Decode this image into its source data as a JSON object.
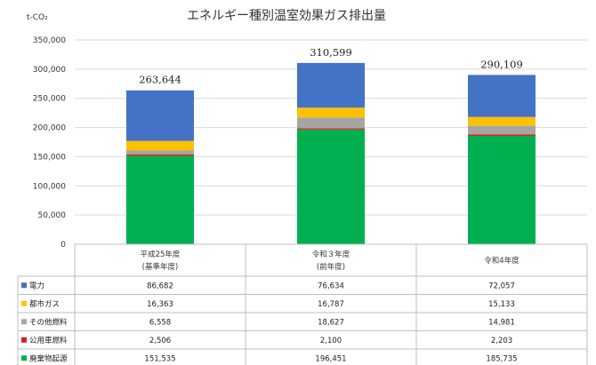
{
  "chart_data": {
    "type": "bar",
    "stacked": true,
    "title": "エネルギー種別温室効果ガス排出量",
    "ylabel": "t-CO₂",
    "ylim": [
      0,
      350000
    ],
    "yticks": [
      "0",
      "50,000",
      "100,000",
      "150,000",
      "200,000",
      "250,000",
      "300,000",
      "350,000"
    ],
    "grid": true,
    "legend": "table-bottom",
    "categories": [
      {
        "line1": "平成25年度",
        "line2": "(基準年度)"
      },
      {
        "line1": "令和３年度",
        "line2": "(前年度)"
      },
      {
        "line1": "令和4年度",
        "line2": ""
      }
    ],
    "totals": [
      "263,644",
      "310,599",
      "290,109"
    ],
    "series": [
      {
        "name": "電力",
        "color": "#4472c4",
        "values": [
          86682,
          76634,
          72057
        ],
        "labels": [
          "86,682",
          "76,634",
          "72,057"
        ]
      },
      {
        "name": "都市ガス",
        "color": "#ffc000",
        "values": [
          16363,
          16787,
          15133
        ],
        "labels": [
          "16,363",
          "16,787",
          "15,133"
        ]
      },
      {
        "name": "その他燃料",
        "color": "#a5a5a5",
        "values": [
          6558,
          18627,
          14981
        ],
        "labels": [
          "6,558",
          "18,627",
          "14,981"
        ]
      },
      {
        "name": "公用車燃料",
        "color": "#e41a1c",
        "values": [
          2506,
          2100,
          2203
        ],
        "labels": [
          "2,506",
          "2,100",
          "2,203"
        ]
      },
      {
        "name": "廃棄物起源",
        "color": "#00b050",
        "values": [
          151535,
          196451,
          185735
        ],
        "labels": [
          "151,535",
          "196,451",
          "185,735"
        ]
      }
    ]
  }
}
